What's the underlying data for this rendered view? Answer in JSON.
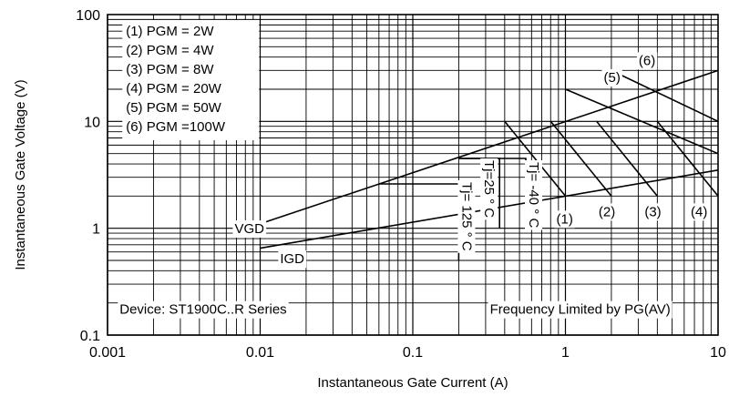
{
  "chart_data": {
    "type": "line",
    "title": "",
    "xlabel": "Instantaneous Gate Current (A)",
    "ylabel": "Instantaneous Gate Voltage (V)",
    "x_scale": "log",
    "y_scale": "log",
    "xlim": [
      0.001,
      10
    ],
    "ylim": [
      0.1,
      100
    ],
    "grid": true,
    "x_ticks": [
      {
        "value": 0.001,
        "label": "0.001"
      },
      {
        "value": 0.01,
        "label": "0.01"
      },
      {
        "value": 0.1,
        "label": "0.1"
      },
      {
        "value": 1,
        "label": "1"
      },
      {
        "value": 10,
        "label": "10"
      }
    ],
    "y_ticks": [
      {
        "value": 0.1,
        "label": "0.1"
      },
      {
        "value": 1,
        "label": "1"
      },
      {
        "value": 10,
        "label": "10"
      },
      {
        "value": 100,
        "label": "100"
      }
    ],
    "legend": {
      "placement": "top-left",
      "entries": [
        "(1) PGM = 2W",
        "(2) PGM = 4W",
        "(3) PGM = 8W",
        "(4) PGM = 20W",
        "(5) PGM = 50W",
        "(6) PGM =100W"
      ]
    },
    "series": [
      {
        "id": "upper-limit",
        "points": [
          [
            0.01,
            1.1
          ],
          [
            10,
            30
          ]
        ]
      },
      {
        "id": "lower-limit",
        "points": [
          [
            0.01,
            0.65
          ],
          [
            10,
            3.5
          ]
        ]
      },
      {
        "id": "pgm-2w",
        "label": "(1)",
        "points": [
          [
            0.4,
            10
          ],
          [
            1,
            2
          ]
        ]
      },
      {
        "id": "pgm-4w",
        "label": "(2)",
        "points": [
          [
            0.8,
            10
          ],
          [
            2,
            2
          ]
        ]
      },
      {
        "id": "pgm-8w",
        "label": "(3)",
        "points": [
          [
            1.6,
            10
          ],
          [
            4,
            2
          ]
        ]
      },
      {
        "id": "pgm-20w",
        "label": "(4)",
        "points": [
          [
            4,
            10
          ],
          [
            10,
            2
          ]
        ]
      },
      {
        "id": "pgm-50w",
        "label": "(5)",
        "points": [
          [
            1,
            20
          ],
          [
            10,
            5
          ]
        ]
      },
      {
        "id": "pgm-100w",
        "label": "(6)",
        "points": [
          [
            2,
            30
          ],
          [
            10,
            10
          ]
        ]
      },
      {
        "id": "tj-125",
        "label": "Tj= 125 ° C",
        "points": [
          [
            0.06,
            2.6
          ],
          [
            0.2,
            2.6
          ],
          [
            0.2,
            0.5
          ]
        ]
      },
      {
        "id": "tj-25",
        "label": "Tj=25 ° C",
        "points": [
          [
            0.2,
            4.5
          ],
          [
            0.37,
            4.5
          ],
          [
            0.37,
            1
          ]
        ]
      },
      {
        "id": "tj-neg40",
        "label": "Tj= -40 ° C",
        "points": [
          [
            0.2,
            4.5
          ],
          [
            0.55,
            4.5
          ],
          [
            0.55,
            1
          ]
        ]
      }
    ],
    "annotations": [
      {
        "id": "vgd",
        "text": "VGD",
        "x": 0.0068,
        "y": 0.9
      },
      {
        "id": "igd",
        "text": "IGD",
        "x": 0.0135,
        "y": 0.47
      },
      {
        "id": "device",
        "text": "Device: ST1900C..R Series",
        "x": 0.0012,
        "y": 0.158
      },
      {
        "id": "freq",
        "text": "Frequency Limited by PG(AV)",
        "x": 0.32,
        "y": 0.158
      }
    ],
    "vgd_level": 1,
    "igd_level": 0.01
  }
}
